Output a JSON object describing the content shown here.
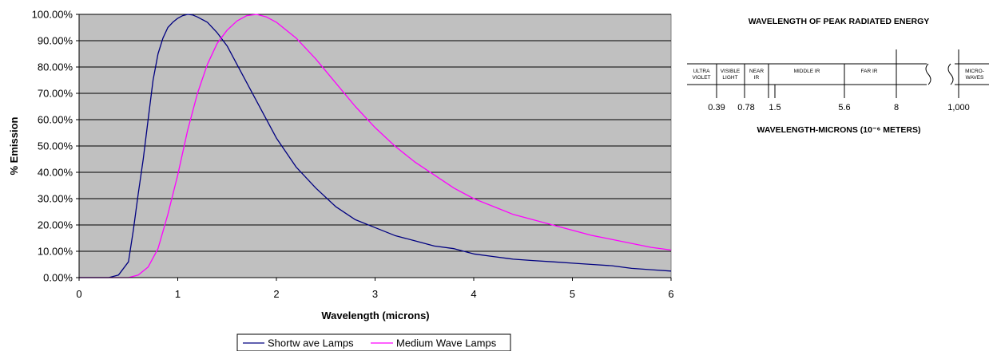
{
  "chart_data": {
    "type": "line",
    "title": "",
    "xlabel": "Wavelength (microns)",
    "ylabel": "% Emission",
    "xlim": [
      0,
      6
    ],
    "ylim": [
      0,
      100
    ],
    "x_ticks": [
      "0",
      "1",
      "2",
      "3",
      "4",
      "5",
      "6"
    ],
    "y_ticks": [
      "0.00%",
      "10.00%",
      "20.00%",
      "30.00%",
      "40.00%",
      "50.00%",
      "60.00%",
      "70.00%",
      "80.00%",
      "90.00%",
      "100.00%"
    ],
    "grid": "horizontal",
    "legend_position": "bottom",
    "colors": {
      "plot_background": "#c0c0c0",
      "shortwave": "#000080",
      "medium": "#ff00ff"
    },
    "series": [
      {
        "name": "Shortw ave Lamps",
        "color": "#000080",
        "x": [
          0,
          0.3,
          0.4,
          0.5,
          0.55,
          0.6,
          0.65,
          0.7,
          0.75,
          0.8,
          0.85,
          0.9,
          0.95,
          1.0,
          1.05,
          1.1,
          1.15,
          1.2,
          1.3,
          1.4,
          1.5,
          1.6,
          1.8,
          2.0,
          2.2,
          2.4,
          2.6,
          2.8,
          3.0,
          3.2,
          3.4,
          3.6,
          3.8,
          4.0,
          4.2,
          4.4,
          4.6,
          4.8,
          5.0,
          5.2,
          5.4,
          5.6,
          5.8,
          6.0
        ],
        "y": [
          0,
          0,
          1,
          6,
          18,
          32,
          45,
          60,
          75,
          85,
          91,
          95,
          97,
          98.5,
          99.5,
          100,
          99.8,
          99,
          97,
          93,
          88,
          81,
          67,
          53,
          42,
          34,
          27,
          22,
          19,
          16,
          14,
          12,
          11,
          9,
          8,
          7,
          6.5,
          6,
          5.5,
          5,
          4.5,
          3.5,
          3,
          2.5
        ]
      },
      {
        "name": "Medium Wave Lamps",
        "color": "#ff00ff",
        "x": [
          0,
          0.5,
          0.6,
          0.7,
          0.8,
          0.9,
          1.0,
          1.1,
          1.2,
          1.3,
          1.4,
          1.5,
          1.6,
          1.7,
          1.8,
          1.9,
          2.0,
          2.2,
          2.4,
          2.6,
          2.8,
          3.0,
          3.2,
          3.4,
          3.6,
          3.8,
          4.0,
          4.2,
          4.4,
          4.6,
          4.8,
          5.0,
          5.2,
          5.4,
          5.6,
          5.8,
          6.0
        ],
        "y": [
          0,
          0,
          1,
          4,
          11,
          24,
          39,
          56,
          70,
          81,
          89,
          94,
          97.5,
          99.5,
          100,
          99,
          97,
          91,
          83,
          74,
          65,
          57,
          50,
          44,
          39,
          34,
          30,
          27,
          24,
          22,
          20,
          18,
          16,
          14.5,
          13,
          11.5,
          10.5
        ]
      }
    ]
  },
  "spectrum": {
    "title": "WAVELENGTH OF PEAK RADIATED ENERGY",
    "bands": [
      {
        "id": "ultraviolet",
        "label_line1": "ULTRA",
        "label_line2": "VIOLET"
      },
      {
        "id": "visible",
        "label_line1": "VISIBLE",
        "label_line2": "LIGHT"
      },
      {
        "id": "near-ir",
        "label_line1": "NEAR",
        "label_line2": "IR"
      },
      {
        "id": "middle-ir",
        "label_line1": "MIDDLE IR",
        "label_line2": ""
      },
      {
        "id": "far-ir",
        "label_line1": "FAR IR",
        "label_line2": ""
      },
      {
        "id": "microwaves",
        "label_line1": "MICRO-",
        "label_line2": "WAVES"
      }
    ],
    "tick_labels": [
      "0.39",
      "0.78",
      "1.5",
      "5.6",
      "8",
      "1,000"
    ],
    "axis_label": "WAVELENGTH-MICRONS (10⁻⁶ METERS)",
    "break_icon": "axis-break-icon"
  }
}
